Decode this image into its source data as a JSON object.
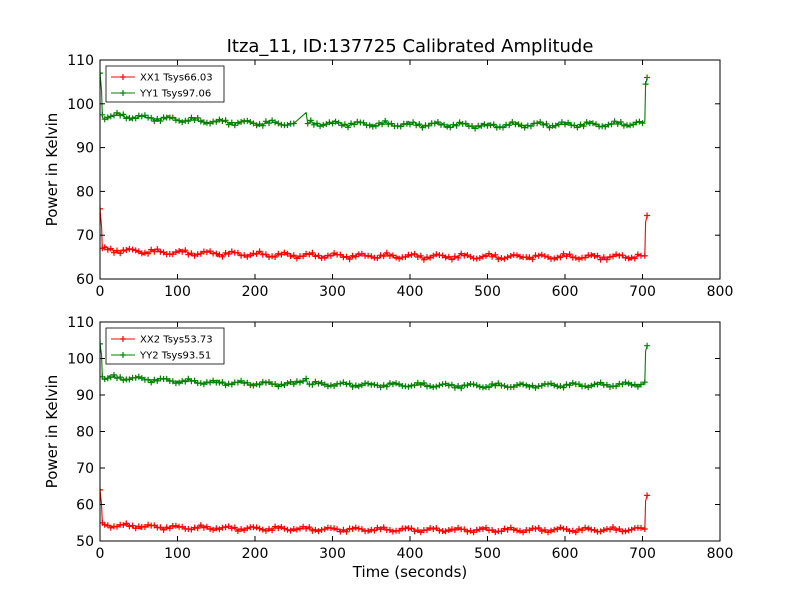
{
  "figure": {
    "title": "Itza_11, ID:137725 Calibrated Amplitude",
    "xlabel": "Time (seconds)"
  },
  "colors": {
    "xx": "#ff0000",
    "yy": "#008000"
  },
  "chart_data": [
    {
      "type": "line",
      "title": "",
      "xlabel": "",
      "ylabel": "Power in Kelvin",
      "xlim": [
        0,
        800
      ],
      "ylim": [
        60,
        110
      ],
      "xticks": [
        "0",
        "100",
        "200",
        "300",
        "400",
        "500",
        "600",
        "700",
        "800"
      ],
      "yticks": [
        "60",
        "70",
        "80",
        "90",
        "100",
        "110"
      ],
      "legend_position": "top-left",
      "grid": false,
      "series": [
        {
          "name": "XX1 Tsys66.03",
          "color": "#ff0000",
          "x": [
            0,
            2,
            3,
            4,
            10,
            50,
            100,
            150,
            200,
            250,
            300,
            350,
            400,
            450,
            500,
            550,
            600,
            650,
            700,
            703,
            704,
            706
          ],
          "y": [
            76,
            72,
            67,
            66.8,
            66.7,
            66.3,
            66.0,
            65.8,
            65.6,
            65.4,
            65.3,
            65.2,
            65.2,
            65.1,
            65.1,
            65.0,
            65.1,
            65.0,
            65.2,
            65.3,
            73,
            74.5
          ]
        },
        {
          "name": "YY1 Tsys97.06",
          "color": "#008000",
          "x": [
            0,
            2,
            3,
            4,
            10,
            20,
            60,
            100,
            150,
            200,
            250,
            266,
            268,
            300,
            350,
            400,
            450,
            500,
            550,
            600,
            650,
            700,
            703,
            704,
            706
          ],
          "y": [
            107,
            103,
            97.5,
            96.6,
            96.9,
            97.3,
            96.8,
            96.4,
            95.9,
            95.6,
            95.5,
            98,
            95.5,
            95.5,
            95.3,
            95.3,
            95.2,
            95.0,
            95.2,
            95.3,
            95.2,
            95.6,
            96,
            104.5,
            106
          ]
        }
      ]
    },
    {
      "type": "line",
      "title": "",
      "xlabel": "Time (seconds)",
      "ylabel": "Power in Kelvin",
      "xlim": [
        0,
        800
      ],
      "ylim": [
        50,
        110
      ],
      "xticks": [
        "0",
        "100",
        "200",
        "300",
        "400",
        "500",
        "600",
        "700",
        "800"
      ],
      "yticks": [
        "50",
        "60",
        "70",
        "80",
        "90",
        "100",
        "110"
      ],
      "legend_position": "top-left",
      "grid": false,
      "series": [
        {
          "name": "XX2 Tsys53.73",
          "color": "#ff0000",
          "x": [
            0,
            2,
            3,
            4,
            10,
            50,
            100,
            150,
            200,
            250,
            300,
            350,
            400,
            450,
            500,
            550,
            600,
            650,
            700,
            703,
            704,
            706
          ],
          "y": [
            64,
            60,
            55,
            54.5,
            54.3,
            54.0,
            53.7,
            53.5,
            53.4,
            53.3,
            53.2,
            53.1,
            53.1,
            53.0,
            53.0,
            53.0,
            53.1,
            53.0,
            53.2,
            53.3,
            61,
            62.5
          ]
        },
        {
          "name": "YY2 Tsys93.51",
          "color": "#008000",
          "x": [
            0,
            2,
            3,
            4,
            10,
            20,
            60,
            100,
            150,
            200,
            250,
            266,
            268,
            300,
            350,
            400,
            450,
            500,
            550,
            600,
            650,
            700,
            703,
            704,
            706
          ],
          "y": [
            104,
            101,
            95,
            94.4,
            94.6,
            94.8,
            94.3,
            93.8,
            93.4,
            93.1,
            93.0,
            94.5,
            93.0,
            92.9,
            92.8,
            92.7,
            92.6,
            92.5,
            92.6,
            92.7,
            92.7,
            93.0,
            93.5,
            102,
            103.5
          ]
        }
      ]
    }
  ]
}
